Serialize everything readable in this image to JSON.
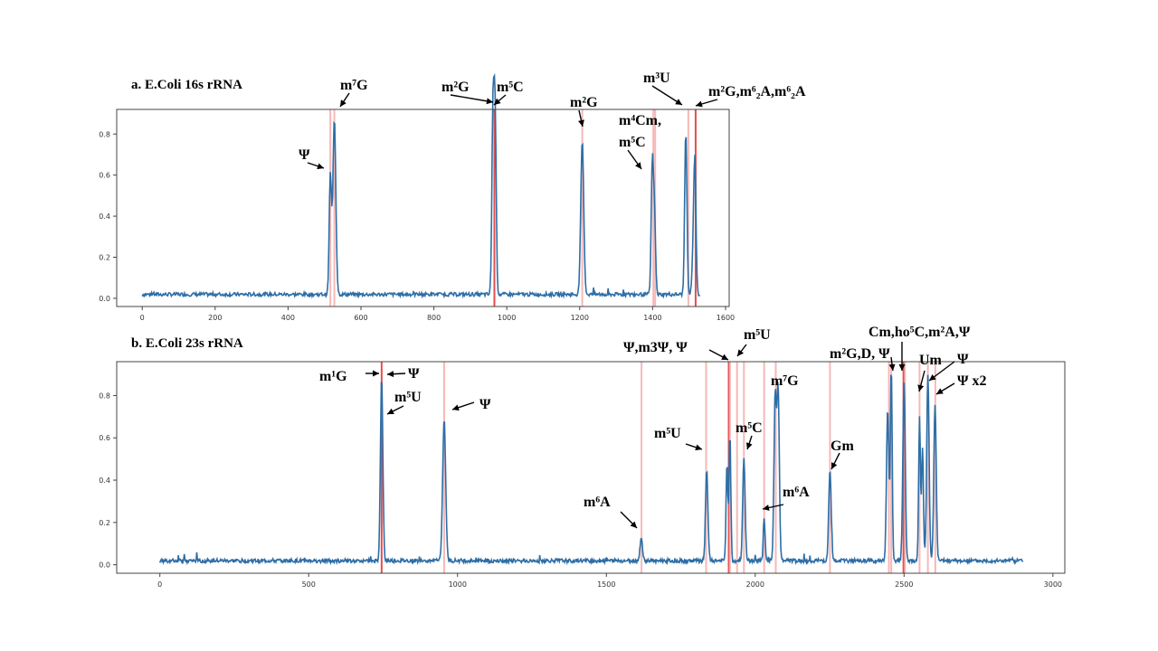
{
  "colors": {
    "line": "#2e6ea6",
    "marker": "#f3a0a0",
    "marker_strong": "#e03030",
    "axis": "#444444",
    "text": "#000000"
  },
  "chart_data": [
    {
      "type": "line",
      "title": "a. E.Coli 16s rRNA",
      "xlabel": "",
      "ylabel": "",
      "xlim": [
        -70,
        1610
      ],
      "ylim": [
        -0.04,
        0.92
      ],
      "xticks": [
        0,
        200,
        400,
        600,
        800,
        1000,
        1200,
        1400,
        1600
      ],
      "yticks": [
        0.0,
        0.2,
        0.4,
        0.6,
        0.8
      ],
      "grid": false,
      "series": [
        {
          "x_start": 0,
          "x_end": 1530,
          "baseline": 0.01,
          "peaks": [
            {
              "x": 516,
              "h": 0.58,
              "w": 3
            },
            {
              "x": 527,
              "h": 0.86,
              "w": 4
            },
            {
              "x": 962,
              "h": 0.88,
              "w": 3
            },
            {
              "x": 968,
              "h": 0.87,
              "w": 3
            },
            {
              "x": 1207,
              "h": 0.75,
              "w": 4
            },
            {
              "x": 1399,
              "h": 0.62,
              "w": 3
            },
            {
              "x": 1405,
              "h": 0.38,
              "w": 3
            },
            {
              "x": 1491,
              "h": 0.8,
              "w": 3
            },
            {
              "x": 1511,
              "h": 0.17,
              "w": 3
            },
            {
              "x": 1516,
              "h": 0.64,
              "w": 3
            }
          ]
        }
      ],
      "markers": [
        {
          "x": 516,
          "strong": false
        },
        {
          "x": 527,
          "strong": false
        },
        {
          "x": 966,
          "strong": true
        },
        {
          "x": 1207,
          "strong": false
        },
        {
          "x": 1402,
          "strong": false
        },
        {
          "x": 1407,
          "strong": false
        },
        {
          "x": 1498,
          "strong": false
        },
        {
          "x": 1518,
          "strong": true
        }
      ],
      "annotations": [
        {
          "text": "Ψ",
          "ax": 512,
          "ay": 0.57
        },
        {
          "text": "m⁷G",
          "ax": 527,
          "ay": 0.9
        },
        {
          "text": "m²G",
          "ax": 962,
          "ay": 0.9
        },
        {
          "text": "m⁵C",
          "ax": 968,
          "ay": 0.9
        },
        {
          "text": "m²G",
          "ax": 1207,
          "ay": 0.82
        },
        {
          "text": "m⁴Cm,",
          "ax": 1402,
          "ay": 0.7
        },
        {
          "text": "m⁵C",
          "ax": 1402,
          "ay": 0.62
        },
        {
          "text": "m³U",
          "ax": 1498,
          "ay": 0.92
        },
        {
          "text": "m²G,m⁶₂A,m⁶₂A",
          "ax": 1518,
          "ay": 0.92
        }
      ]
    },
    {
      "type": "line",
      "title": "b. E.Coli 23s rRNA",
      "xlabel": "",
      "ylabel": "",
      "xlim": [
        -145,
        3040
      ],
      "ylim": [
        -0.04,
        0.96
      ],
      "xticks": [
        0,
        500,
        1000,
        1500,
        2000,
        2500,
        3000
      ],
      "yticks": [
        0.0,
        0.2,
        0.4,
        0.6,
        0.8
      ],
      "grid": false,
      "series": [
        {
          "x_start": 0,
          "x_end": 2900,
          "baseline": 0.01,
          "peaks": [
            {
              "x": 745,
              "h": 0.87,
              "w": 4
            },
            {
              "x": 955,
              "h": 0.67,
              "w": 5
            },
            {
              "x": 1617,
              "h": 0.11,
              "w": 4
            },
            {
              "x": 1837,
              "h": 0.43,
              "w": 4
            },
            {
              "x": 1905,
              "h": 0.46,
              "w": 3
            },
            {
              "x": 1915,
              "h": 0.59,
              "w": 3
            },
            {
              "x": 1962,
              "h": 0.48,
              "w": 4
            },
            {
              "x": 2030,
              "h": 0.2,
              "w": 3
            },
            {
              "x": 2067,
              "h": 0.77,
              "w": 4
            },
            {
              "x": 2077,
              "h": 0.8,
              "w": 4
            },
            {
              "x": 2251,
              "h": 0.43,
              "w": 4
            },
            {
              "x": 2445,
              "h": 0.72,
              "w": 4
            },
            {
              "x": 2457,
              "h": 0.92,
              "w": 3
            },
            {
              "x": 2500,
              "h": 0.85,
              "w": 4
            },
            {
              "x": 2552,
              "h": 0.68,
              "w": 3
            },
            {
              "x": 2562,
              "h": 0.54,
              "w": 3
            },
            {
              "x": 2580,
              "h": 0.88,
              "w": 4
            },
            {
              "x": 2604,
              "h": 0.74,
              "w": 4
            }
          ]
        }
      ],
      "markers": [
        {
          "x": 745,
          "strong": true
        },
        {
          "x": 955,
          "strong": false
        },
        {
          "x": 1618,
          "strong": false
        },
        {
          "x": 1835,
          "strong": false
        },
        {
          "x": 1911,
          "strong": true
        },
        {
          "x": 1915,
          "strong": false
        },
        {
          "x": 1939,
          "strong": false
        },
        {
          "x": 1962,
          "strong": false
        },
        {
          "x": 2030,
          "strong": false
        },
        {
          "x": 2069,
          "strong": false
        },
        {
          "x": 2251,
          "strong": false
        },
        {
          "x": 2449,
          "strong": false
        },
        {
          "x": 2457,
          "strong": false
        },
        {
          "x": 2498,
          "strong": true
        },
        {
          "x": 2503,
          "strong": false
        },
        {
          "x": 2552,
          "strong": false
        },
        {
          "x": 2580,
          "strong": false
        },
        {
          "x": 2605,
          "strong": false
        }
      ],
      "annotations": [
        {
          "text": "m¹G",
          "ax": 745,
          "ay": 0.9
        },
        {
          "text": "Ψ",
          "ax": 750,
          "ay": 0.9
        },
        {
          "text": "m⁵U",
          "ax": 750,
          "ay": 0.72
        },
        {
          "text": "Ψ",
          "ax": 970,
          "ay": 0.72
        },
        {
          "text": "m⁶A",
          "ax": 1610,
          "ay": 0.15
        },
        {
          "text": "m⁵U",
          "ax": 1825,
          "ay": 0.53
        },
        {
          "text": "Ψ,m3Ψ, Ψ",
          "ax": 1911,
          "ay": 0.94
        },
        {
          "text": "m⁵U",
          "ax": 1939,
          "ay": 0.96
        },
        {
          "text": "m⁵C",
          "ax": 1962,
          "ay": 0.57
        },
        {
          "text": "m⁶A",
          "ax": 2030,
          "ay": 0.25
        },
        {
          "text": "m⁷G",
          "ax": 2075,
          "ay": 0.85
        },
        {
          "text": "Gm",
          "ax": 2251,
          "ay": 0.47
        },
        {
          "text": "m²G,D, Ψ",
          "ax": 2457,
          "ay": 0.96
        },
        {
          "text": "Cm,ho⁵C,m²A,Ψ",
          "ax": 2500,
          "ay": 0.96
        },
        {
          "text": "Um",
          "ax": 2555,
          "ay": 0.83
        },
        {
          "text": "Ψ",
          "ax": 2580,
          "ay": 0.9
        },
        {
          "text": "Ψ x2",
          "ax": 2604,
          "ay": 0.81
        }
      ]
    }
  ]
}
